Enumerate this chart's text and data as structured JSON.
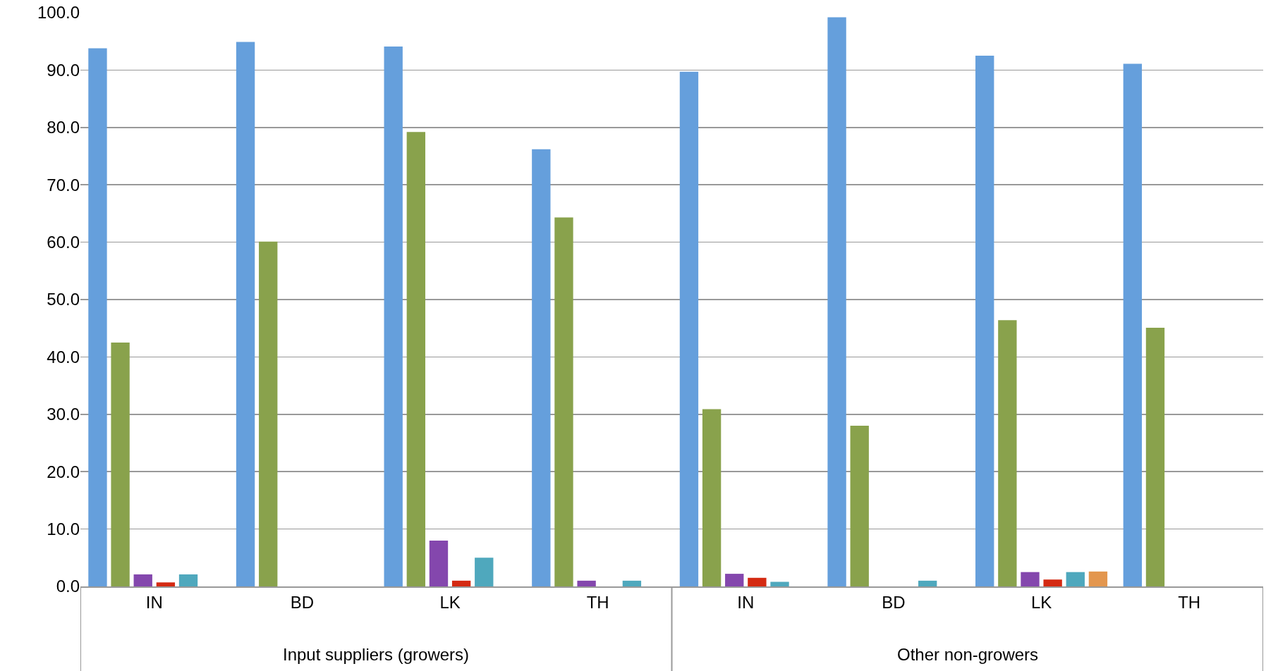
{
  "chart_data": {
    "type": "bar",
    "categories": [
      "IN",
      "BD",
      "LK",
      "TH",
      "IN",
      "BD",
      "LK",
      "TH"
    ],
    "series": [
      {
        "color": "#659fdc",
        "values": [
          93.8,
          94.9,
          94.1,
          76.2,
          89.7,
          99.2,
          92.5,
          91.1
        ]
      },
      {
        "color": "#89a24c",
        "values": [
          42.5,
          60.1,
          79.2,
          64.3,
          30.9,
          28.0,
          46.4,
          45.1
        ]
      },
      {
        "color": "#8447ad",
        "values": [
          2.1,
          null,
          8.0,
          1.0,
          2.2,
          null,
          2.5,
          null
        ]
      },
      {
        "color": "#d42a12",
        "values": [
          0.7,
          null,
          1.0,
          null,
          1.5,
          null,
          1.2,
          null
        ]
      },
      {
        "color": "#4fa8bd",
        "values": [
          2.1,
          null,
          5.0,
          1.0,
          0.8,
          1.0,
          2.5,
          null
        ]
      },
      {
        "color": "#e3964e",
        "values": [
          null,
          null,
          null,
          null,
          null,
          null,
          2.6,
          null
        ]
      }
    ],
    "ylim": [
      0,
      100
    ],
    "yticks": [
      {
        "value": 0,
        "label": "0.0"
      },
      {
        "value": 10,
        "label": "10.0"
      },
      {
        "value": 20,
        "label": "20.0"
      },
      {
        "value": 30,
        "label": "30.0"
      },
      {
        "value": 40,
        "label": "40.0"
      },
      {
        "value": 50,
        "label": "50.0"
      },
      {
        "value": 60,
        "label": "60.0"
      },
      {
        "value": 70,
        "label": "70.0"
      },
      {
        "value": 80,
        "label": "80.0"
      },
      {
        "value": 90,
        "label": "90.0"
      },
      {
        "value": 100,
        "label": "100.0"
      }
    ],
    "grid": "y",
    "annotations": [
      "Input suppliers (growers)",
      "Other non-growers"
    ]
  }
}
